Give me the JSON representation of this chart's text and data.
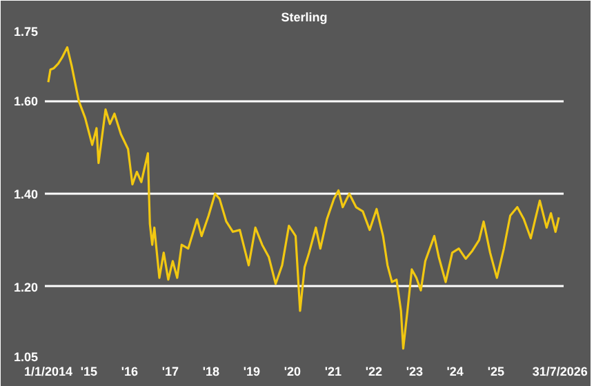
{
  "chart_data": {
    "type": "line",
    "title": "Sterling",
    "x": [
      "2014-01-01",
      "2014-01-20",
      "2014-02-20",
      "2014-04-01",
      "2014-05-05",
      "2014-06-20",
      "2014-07-30",
      "2014-10-01",
      "2014-11-28",
      "2015-01-30",
      "2015-03-10",
      "2015-03-28",
      "2015-05-30",
      "2015-07-08",
      "2015-08-18",
      "2015-10-15",
      "2015-12-18",
      "2016-01-26",
      "2016-03-06",
      "2016-04-15",
      "2016-06-13",
      "2016-06-24",
      "2016-07-01",
      "2016-07-22",
      "2016-08-10",
      "2016-09-24",
      "2016-11-02",
      "2016-12-13",
      "2017-01-22",
      "2017-03-03",
      "2017-04-12",
      "2017-06-10",
      "2017-08-29",
      "2017-10-08",
      "2017-12-10",
      "2018-02-06",
      "2018-03-18",
      "2018-05-18",
      "2018-07-16",
      "2018-09-16",
      "2018-12-05",
      "2019-02-03",
      "2019-04-05",
      "2019-06-03",
      "2019-08-04",
      "2019-10-01",
      "2019-12-01",
      "2020-01-30",
      "2020-03-10",
      "2020-04-20",
      "2020-05-30",
      "2020-07-30",
      "2020-09-08",
      "2020-11-06",
      "2021-01-08",
      "2021-02-18",
      "2021-03-28",
      "2021-05-26",
      "2021-07-26",
      "2021-09-24",
      "2021-11-25",
      "2022-01-26",
      "2022-03-25",
      "2022-05-04",
      "2022-06-13",
      "2022-07-24",
      "2022-09-02",
      "2022-09-22",
      "2022-10-30",
      "2022-12-08",
      "2023-01-18",
      "2023-02-27",
      "2023-04-08",
      "2023-06-28",
      "2023-08-07",
      "2023-10-08",
      "2023-12-06",
      "2024-02-03",
      "2024-04-05",
      "2024-06-03",
      "2024-08-03",
      "2024-09-13",
      "2024-11-10",
      "2025-01-10",
      "2025-03-13",
      "2025-05-10",
      "2025-07-12",
      "2025-09-09",
      "2025-11-10",
      "2025-12-20",
      "2026-01-30",
      "2026-04-01",
      "2026-05-10",
      "2026-06-20",
      "2026-07-20"
    ],
    "series": [
      {
        "color": "#f2c811",
        "values": [
          1.64,
          1.667,
          1.67,
          1.68,
          1.693,
          1.715,
          1.675,
          1.6,
          1.563,
          1.505,
          1.541,
          1.466,
          1.581,
          1.55,
          1.572,
          1.528,
          1.496,
          1.42,
          1.447,
          1.425,
          1.487,
          1.389,
          1.335,
          1.29,
          1.327,
          1.219,
          1.273,
          1.215,
          1.255,
          1.219,
          1.29,
          1.282,
          1.345,
          1.309,
          1.353,
          1.4,
          1.389,
          1.34,
          1.318,
          1.322,
          1.246,
          1.327,
          1.29,
          1.264,
          1.206,
          1.246,
          1.331,
          1.309,
          1.148,
          1.242,
          1.273,
          1.327,
          1.282,
          1.345,
          1.389,
          1.407,
          1.371,
          1.4,
          1.371,
          1.362,
          1.322,
          1.367,
          1.309,
          1.246,
          1.21,
          1.215,
          1.148,
          1.067,
          1.148,
          1.237,
          1.219,
          1.192,
          1.255,
          1.309,
          1.264,
          1.21,
          1.273,
          1.282,
          1.26,
          1.277,
          1.3,
          1.34,
          1.273,
          1.219,
          1.282,
          1.353,
          1.371,
          1.345,
          1.304,
          1.345,
          1.385,
          1.327,
          1.358,
          1.318,
          1.349
        ]
      }
    ],
    "xlim": [
      "2013-12-01",
      "2026-09-01"
    ],
    "xticks": [
      {
        "value": "2014-01-01",
        "label": "1/1/2014"
      },
      {
        "value": "2015-01-01",
        "label": "'15"
      },
      {
        "value": "2016-01-01",
        "label": "'16"
      },
      {
        "value": "2017-01-01",
        "label": "'17"
      },
      {
        "value": "2018-01-01",
        "label": "'18"
      },
      {
        "value": "2019-01-01",
        "label": "'19"
      },
      {
        "value": "2020-01-01",
        "label": "'20"
      },
      {
        "value": "2021-01-01",
        "label": "'21"
      },
      {
        "value": "2022-01-01",
        "label": "'22"
      },
      {
        "value": "2023-01-01",
        "label": "'23"
      },
      {
        "value": "2024-01-01",
        "label": "'24"
      },
      {
        "value": "2025-01-01",
        "label": "'25"
      },
      {
        "value": "2026-07-31",
        "label": "31/7/2026"
      }
    ],
    "ylim": [
      1.05,
      1.75
    ],
    "yticks": [
      {
        "value": 1.05,
        "label": "1.05"
      },
      {
        "value": 1.2,
        "label": "1.20"
      },
      {
        "value": 1.4,
        "label": "1.40"
      },
      {
        "value": 1.6,
        "label": "1.60"
      },
      {
        "value": 1.75,
        "label": "1.75"
      }
    ],
    "grid": "y",
    "line_style": "solid"
  }
}
